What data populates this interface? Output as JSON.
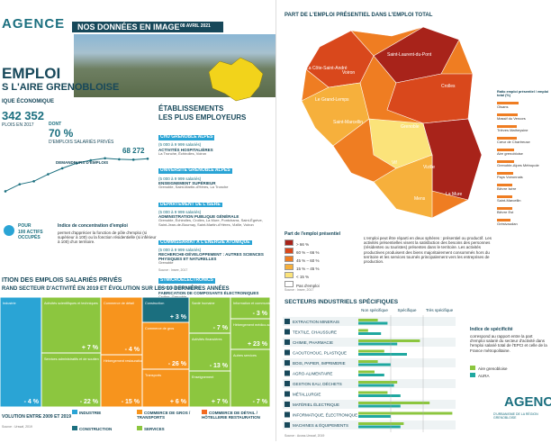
{
  "header": {
    "logo": "AGENCE",
    "logo_sub": "D'URBANISME DE LA RÉGION GRENOBLOISE",
    "banner": "NOS DONNÉES EN IMAGE",
    "date": "08 AVRIL 2021"
  },
  "title": {
    "line1": "EMPLOI",
    "line2": "S L'AIRE GRENOBLOISE"
  },
  "kpis": {
    "section": "IQUE ÉCONOMIQUE",
    "jobs": "342 352",
    "jobs_label": "PLOIS EN 2017",
    "private_prefix": "DONT",
    "private_value": "70 %",
    "private_label": "D'EMPLOIS SALARIÉS PRIVÉS"
  },
  "jobseekers": {
    "label": "DEMANDEURS D'EMPLOIS",
    "value_label": "68 272",
    "values": [
      52000,
      55500,
      57000,
      60500,
      63500,
      66000,
      67500,
      68500,
      68000,
      67800,
      68272
    ],
    "ylim": [
      45000,
      72000
    ]
  },
  "concentration": {
    "prefix": "POUR",
    "text": "100 ACTIFS OCCUPÉS",
    "title": "Indice de concentration d'emploi",
    "body": "permet d'apprécier la fonction de pôle d'emploi (si supérieur à 100) ou la fonction résidentielle (si inférieur à 100) d'un territoire."
  },
  "employers": {
    "title1": "ÉTABLISSEMENTS",
    "title2": "LES PLUS EMPLOYEURS",
    "items": [
      {
        "name": "CHU GRENOBLE ALPES",
        "size": "(5 000 à 9 999 salariés)",
        "activity": "ACTIVITÉS HOSPITALIÈRES",
        "places": "La Tronche, Échirolles, Voiron"
      },
      {
        "name": "UNIVERSITÉ GRENOBLE ALPES",
        "size": "(5 000 à 9 999 salariés)",
        "activity": "ENSEIGNEMENT SUPÉRIEUR",
        "places": "Grenoble, Saint-Martin-d'Hères, La Tronche"
      },
      {
        "name": "DÉPARTEMENT DE L'ISÈRE",
        "size": "(5 000 à 9 999 salariés)",
        "activity": "ADMINISTRATION PUBLIQUE GÉNÉRALE",
        "places": "Grenoble, Échirolles, Crolles, La Mure, Pontcharra, Saint-Égrève, Saint-Jean-de-Bournay, Saint-Martin-d'Hères, Vizille, Voiron"
      },
      {
        "name": "COMMISSARIAT À L'ÉNERGIE ATOMIQUE",
        "size": "(5 000 à 9 999 salariés)",
        "activity": "RECHERCHE-DÉVELOPPEMENT : AUTRES SCIENCES PHYSIQUES ET NATURELLES",
        "places": "Grenoble"
      },
      {
        "name": "STMICROELECTRONICS",
        "size": "(5 000 à 9 999 salariés)",
        "activity": "FABRICATION DE COMPOSANTS ÉLECTRONIQUES",
        "places": "Crolles, Grenoble"
      }
    ],
    "source": "Source : Insee, 2017"
  },
  "treemap": {
    "title1": "ITION DES EMPLOIS SALARIÉS PRIVÉS",
    "title2": "RAND SECTEUR D'ACTIVITÉ EN 2019 ET ÉVOLUTION SUR LES 10 DERNIÈRES ANNÉES",
    "tiles": [
      {
        "label": "Industrie",
        "change": "- 4 %",
        "color": "#2aa4d5"
      },
      {
        "label": "Activités scientifiques et techniques",
        "change": "+ 7 %",
        "color": "#8cc63f"
      },
      {
        "label": "Services administratifs et de soutien",
        "change": "- 22 %",
        "color": "#8cc63f"
      },
      {
        "label": "Commerce de détail",
        "change": "- 4 %",
        "color": "#f7941d"
      },
      {
        "label": "Hébergement restauration",
        "change": "- 15 %",
        "color": "#f7941d"
      },
      {
        "label": "Construction",
        "change": "+ 3 %",
        "color": "#1b6f7f"
      },
      {
        "label": "Commerce de gros",
        "change": "- 26 %",
        "color": "#f7941d"
      },
      {
        "label": "Transports",
        "change": "+ 6 %",
        "color": "#f7941d"
      },
      {
        "label": "Santé humaine",
        "change": "- 7 %",
        "color": "#8cc63f"
      },
      {
        "label": "Activités financières",
        "change": "- 13 %",
        "color": "#8cc63f"
      },
      {
        "label": "Information et communication",
        "change": "- 3 %",
        "color": "#8cc63f"
      },
      {
        "label": "Hébergement médico-social",
        "change": "+ 23 %",
        "color": "#8cc63f"
      },
      {
        "label": "Enseignement",
        "change": "+ 7 %",
        "color": "#8cc63f"
      },
      {
        "label": "Autres services",
        "change": "- 7 %",
        "color": "#8cc63f"
      }
    ],
    "legend": [
      {
        "label": "INDUSTRIE",
        "color": "#2aa4d5"
      },
      {
        "label": "COMMERCE DE GROS / TRANSPORTS",
        "color": "#f7941d"
      },
      {
        "label": "COMMERCE DE DÉTAIL / HÔTELLERIE RESTAURATION",
        "color": "#f26a21"
      },
      {
        "label": "CONSTRUCTION",
        "color": "#1b6f7f"
      },
      {
        "label": "SERVICES",
        "color": "#8cc63f"
      }
    ],
    "footer": "VOLUTION ENTRE 2009 ET 2019",
    "source": "Source : Urssaf, 2019"
  },
  "map": {
    "title": "PART DE L'EMPLOI PRÉSENTIEL DANS L'EMPLOI TOTAL",
    "places": [
      "Voiron",
      "Le Grand-Lemps",
      "La Côte-Saint-André",
      "Saint-Laurent-du-Pont",
      "Crolles",
      "Saint-Marcellin",
      "Grenoble",
      "Vif",
      "Vizille",
      "Mens",
      "La Mure"
    ],
    "legend_title": "Part de l'emploi présentiel",
    "legend": [
      {
        "label": "> 66 %",
        "color": "#a8231a"
      },
      {
        "label": "60 % – 66 %",
        "color": "#d9481c"
      },
      {
        "label": "45 % – 60 %",
        "color": "#ef7d22"
      },
      {
        "label": "15 % – 45 %",
        "color": "#f6b03c"
      },
      {
        "label": "< 15 %",
        "color": "#fbe37a"
      },
      {
        "label": "Pas d'emploi",
        "color": "#ffffff"
      }
    ],
    "text": "L'emploi peut être réparti en deux sphères : présentiel ou productif. Les activités présentielles visent la satisfaction des besoins des personnes (résidentes ou touristes) présentes dans le territoire. Les activités productives produisent des biens majoritairement consommés hors du territoire et les services tournés principalement vers les entreprises de production.",
    "source": "Source : Insee, 2017"
  },
  "ratio": {
    "title": "Ratio emploi présentiel / emploi total (%)",
    "categories": [
      "Oisans",
      "Massif du Vercors",
      "Trièves Matheysine",
      "Cœur de Chartreuse",
      "Aire grenobloise",
      "Grenoble-Alpes Métropole",
      "Pays Voironnais",
      "Bièvre Isère",
      "Saint-Marcellin",
      "Bièvre Est",
      "Grésivaudan"
    ],
    "values": [
      80,
      78,
      74,
      72,
      62,
      63,
      60,
      58,
      57,
      55,
      50
    ],
    "xlim": [
      0,
      100
    ]
  },
  "industry": {
    "title": "SECTEURS INDUSTRIELS SPÉCIFIQUES",
    "columns": [
      "Non spécifique",
      "Spécifique",
      "Très spécifique"
    ],
    "sectors": [
      "EXTRACTION MINERAIS",
      "TEXTILE, CHAUSSURE",
      "CHIMIE, PHARMACIE",
      "CAOUTCHOUC, PLASTIQUE",
      "BOIS, PAPIER, IMPRIMERIE",
      "AGRO-ALIMENTAIRE",
      "GESTION EAU, DÉCHETS",
      "MÉTALLURGIE",
      "MATÉRIEL ÉLECTRIQUE",
      "INFORMATIQUE, ÉLECTRONIQUE",
      "MACHINES & ÉQUIPEMENTS"
    ],
    "series": [
      {
        "name": "Aire grenobloise",
        "color": "#8cc63f",
        "values": [
          0.6,
          0.3,
          1.9,
          0.8,
          0.6,
          0.5,
          1.2,
          0.9,
          2.2,
          2.9,
          1.4
        ]
      },
      {
        "name": "AURA",
        "color": "#20a8a0",
        "values": [
          0.9,
          0.7,
          1.2,
          1.5,
          1.0,
          0.8,
          1.1,
          1.3,
          1.3,
          1.0,
          1.3
        ]
      }
    ],
    "xlim": [
      0,
      3
    ],
    "note_title": "Indice de spécificité",
    "note": "correspond au rapport entre la part d'emploi salarié du secteur d'activité dans l'emploi salarié total de l'EPCI et celle de la France métropolitaine.",
    "source": "Source : Acoss-Urssaf, 2019"
  }
}
